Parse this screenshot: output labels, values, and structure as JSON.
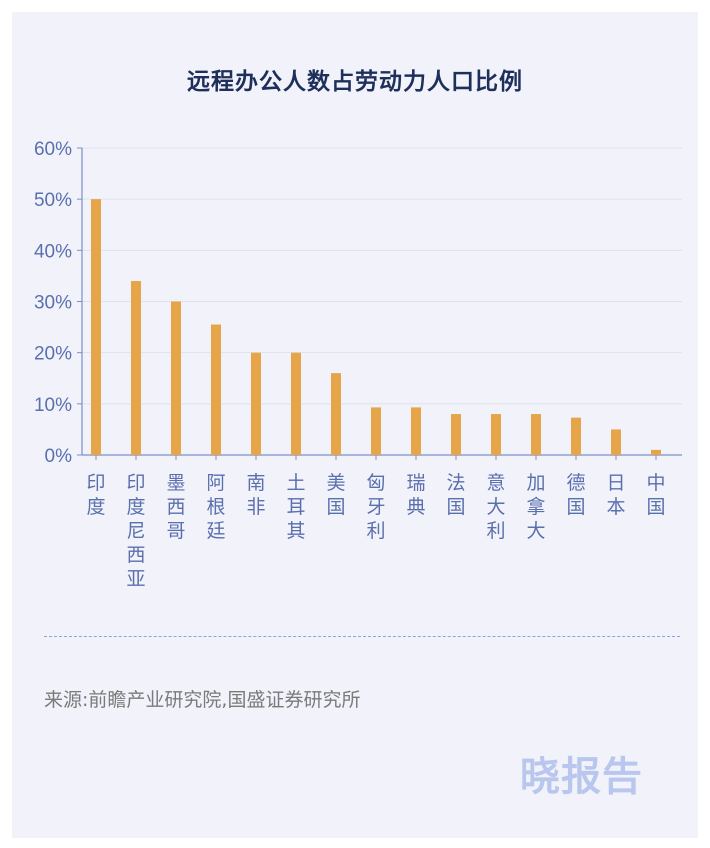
{
  "chart_data": {
    "type": "bar",
    "title": "远程办公人数占劳动力人口比例",
    "categories": [
      "印度",
      "印度尼西亚",
      "墨西哥",
      "阿根廷",
      "南非",
      "土耳其",
      "美国",
      "匈牙利",
      "瑞典",
      "法国",
      "意大利",
      "加拿大",
      "德国",
      "日本",
      "中国"
    ],
    "values": [
      50,
      34,
      30,
      25.5,
      20,
      20,
      16,
      9.3,
      9.3,
      8,
      8,
      8,
      7.3,
      5,
      1
    ],
    "yticks": [
      "0%",
      "10%",
      "20%",
      "30%",
      "40%",
      "50%",
      "60%"
    ],
    "ylim": [
      0,
      60
    ],
    "grid": true,
    "bar_color": "#e5a548"
  },
  "source": "来源:前瞻产业研究院,国盛证券研究所",
  "watermark": "晓报告",
  "colors": {
    "title": "#1f2f5c",
    "axis": "#7b8fc9",
    "tick_text": "#5a6fae",
    "background": "#f2f3fa"
  }
}
